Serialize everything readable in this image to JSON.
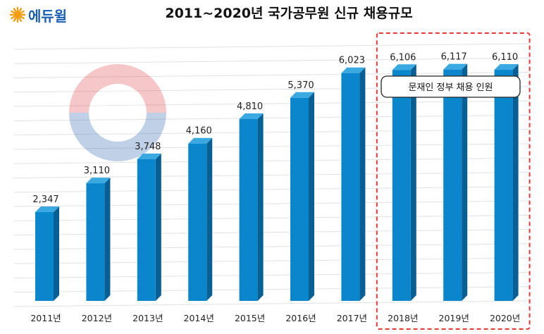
{
  "brand": {
    "name": "에듀윌",
    "logo_color": "#f39c12",
    "text_color": "#1a5fb4"
  },
  "title": "2011~2020년 국가공무원 신규 채용규모",
  "highlight": {
    "label": "문재인 정부 채용 인원",
    "border_color": "#e53935",
    "categories": [
      "2018년",
      "2019년",
      "2020년"
    ]
  },
  "chart_data": {
    "type": "bar",
    "title": "2011~2020년 국가공무원 신규 채용규모",
    "categories": [
      "2011년",
      "2012년",
      "2013년",
      "2014년",
      "2015년",
      "2016년",
      "2017년",
      "2018년",
      "2019년",
      "2020년"
    ],
    "values": [
      2347,
      3110,
      3748,
      4160,
      4810,
      5370,
      6023,
      6106,
      6117,
      6110
    ],
    "value_labels": [
      "2,347",
      "3,110",
      "3,748",
      "4,160",
      "4,810",
      "5,370",
      "6,023",
      "6,106",
      "6,117",
      "6,110"
    ],
    "xlabel": "",
    "ylabel": "",
    "ylim": [
      0,
      6800
    ],
    "grid": true,
    "legend": "none",
    "colors": {
      "bar_front": "#0a87cc",
      "bar_side": "#075f93",
      "bar_top": "#3aa9e2",
      "grid": "#e2e2e2"
    }
  }
}
